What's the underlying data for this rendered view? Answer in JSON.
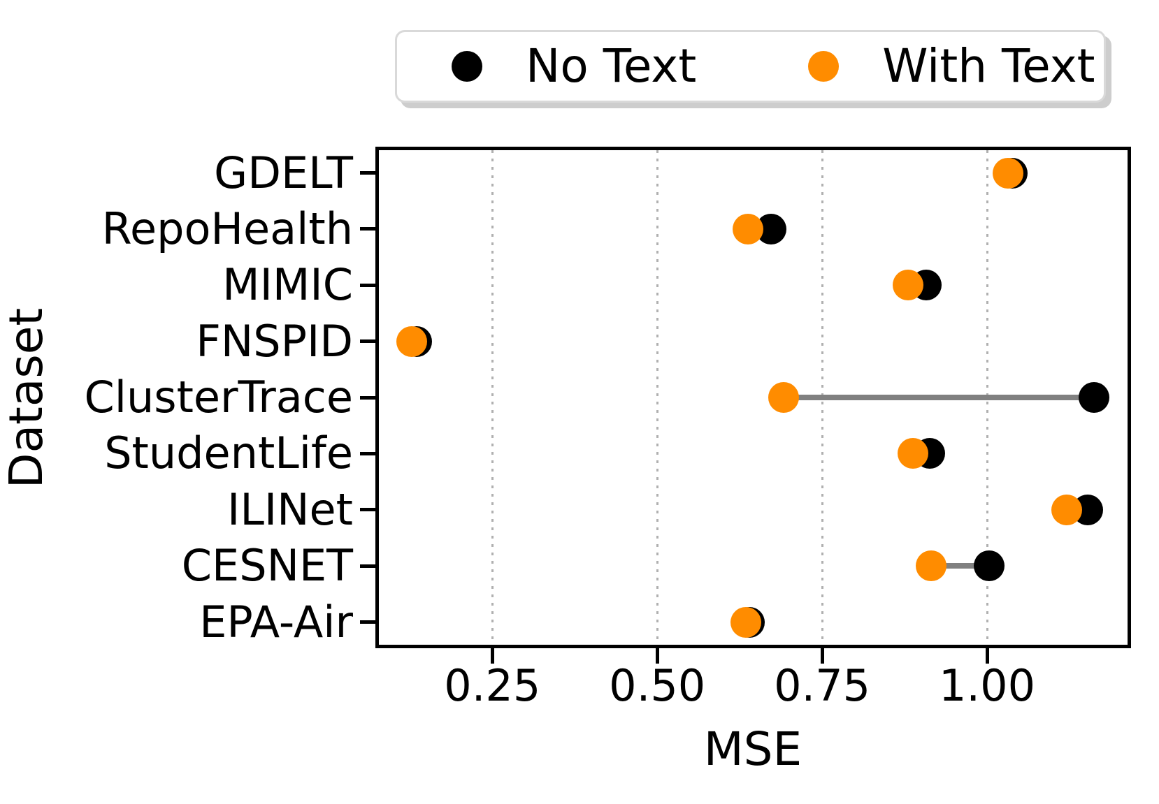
{
  "chart_data": {
    "type": "scatter",
    "variant": "dumbbell dot plot (paired markers per category, connected by gray line)",
    "title": "",
    "xlabel": "MSE",
    "ylabel": "Dataset",
    "categories": [
      "GDELT",
      "RepoHealth",
      "MIMIC",
      "FNSPID",
      "ClusterTrace",
      "StudentLife",
      "ILINet",
      "CESNET",
      "EPA-Air"
    ],
    "series": [
      {
        "name": "No Text",
        "color": "#000000",
        "values": [
          1.038,
          0.673,
          0.908,
          0.135,
          1.162,
          0.913,
          1.153,
          1.003,
          0.64
        ]
      },
      {
        "name": "With Text",
        "color": "#ff8c00",
        "values": [
          1.032,
          0.638,
          0.88,
          0.128,
          0.692,
          0.888,
          1.121,
          0.915,
          0.634
        ]
      }
    ],
    "x_ticks": [
      0.25,
      0.5,
      0.75,
      1.0
    ],
    "x_tick_labels": [
      "0.25",
      "0.50",
      "0.75",
      "1.00"
    ],
    "xlim": [
      0.078,
      1.213
    ],
    "grid": "vertical dotted gridlines at each x tick",
    "legend_position": "top center, horizontal, rounded box with shadow",
    "connector_color": "#808080",
    "gridline_color": "#b0b0b0"
  }
}
